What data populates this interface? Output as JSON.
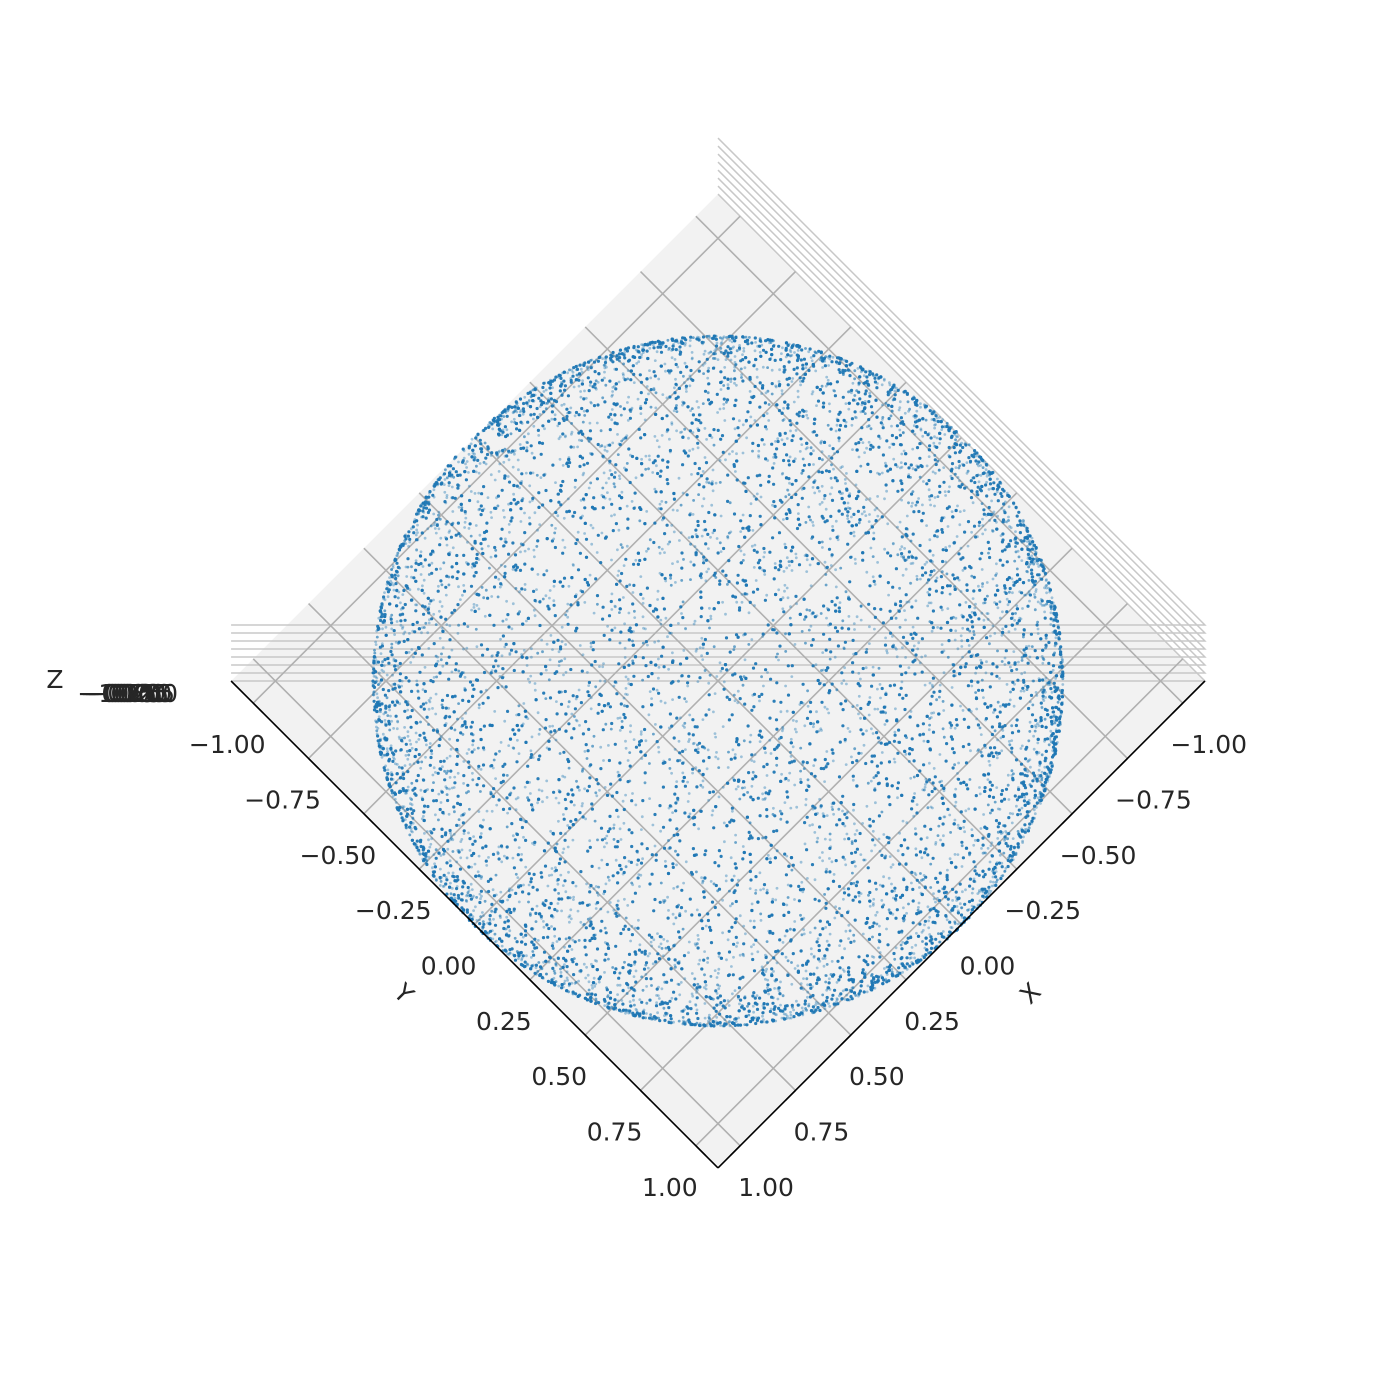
{
  "chart_data": {
    "type": "scatter",
    "projection": "3d",
    "view": "top-down, rotated 45 degrees",
    "title": "",
    "xlabel": "X",
    "ylabel": "Y",
    "zlabel": "Z",
    "xlim": [
      -1.1,
      1.1
    ],
    "ylim": [
      -1.1,
      1.1
    ],
    "x_ticks": [
      -1.0,
      -0.75,
      -0.5,
      -0.25,
      0.0,
      0.25,
      0.5,
      0.75,
      1.0
    ],
    "y_ticks": [
      -1.0,
      -0.75,
      -0.5,
      -0.25,
      0.0,
      0.25,
      0.5,
      0.75,
      1.0
    ],
    "x_tick_labels": [
      "−1.00",
      "−0.75",
      "−0.50",
      "−0.25",
      "0.00",
      "0.25",
      "0.50",
      "0.75",
      "1.00"
    ],
    "y_tick_labels": [
      "−1.00",
      "−0.75",
      "−0.50",
      "−0.25",
      "0.00",
      "0.25",
      "0.50",
      "0.75",
      "1.00"
    ],
    "z_tick_labels": [
      "1.00",
      "0.75",
      "0.50",
      "0.25",
      "0.00",
      "−0.25",
      "−0.50",
      "−0.75",
      "−1.00"
    ],
    "grid": true,
    "pane_color": "#f2f2f2",
    "grid_color": "#b0b0b0",
    "point_color": "#1f77b4",
    "series": [
      {
        "description": "points uniformly distributed on the surface of the unit sphere",
        "surface": "unit-sphere",
        "radius": 1.0,
        "center": [
          0,
          0,
          0
        ],
        "count": 10000
      }
    ]
  }
}
